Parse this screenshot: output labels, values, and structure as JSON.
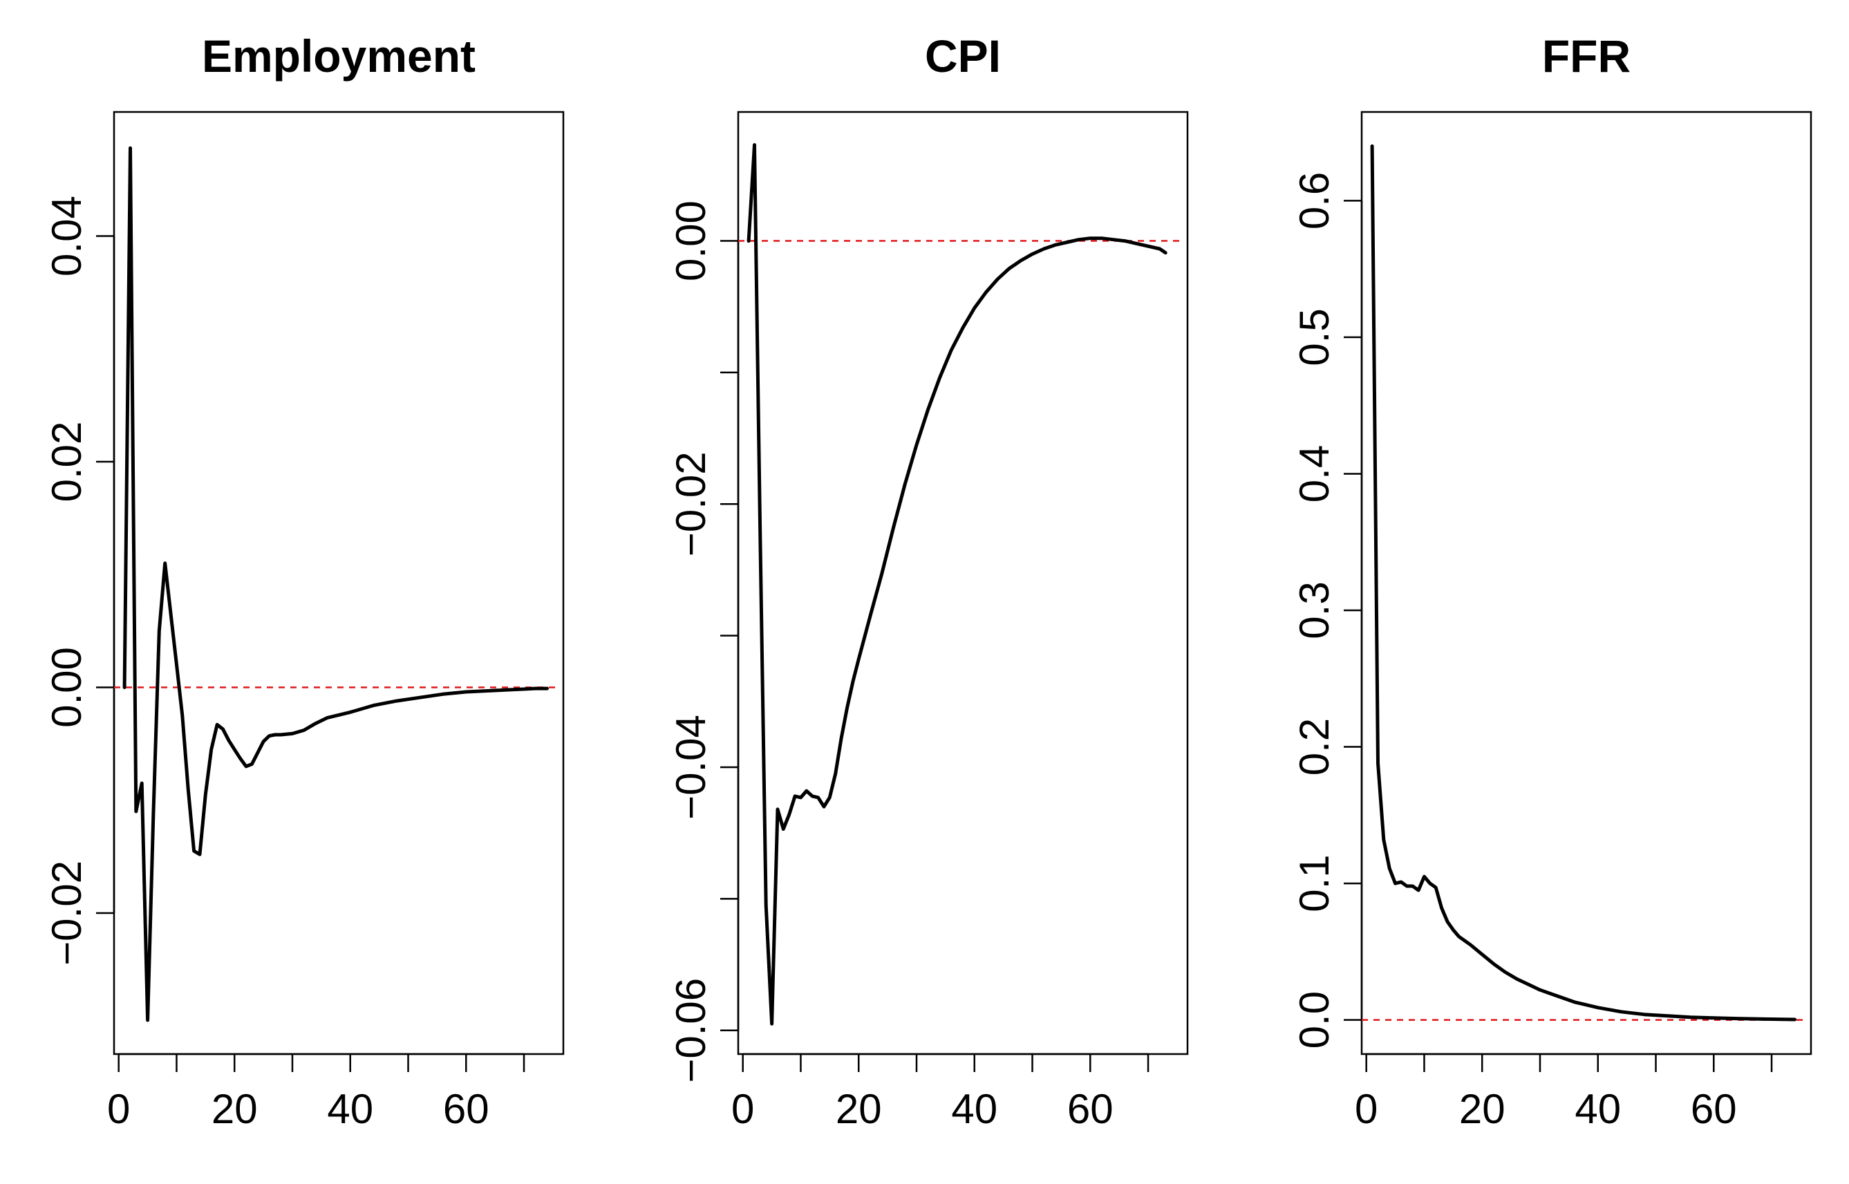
{
  "figure": {
    "background": "#ffffff",
    "line_color": "#000000",
    "reference_line_color": "#e0161b"
  },
  "chart_data": [
    {
      "type": "line",
      "title": "Employment",
      "xlabel": "",
      "ylabel": "",
      "xlim": [
        -0.8,
        76.8
      ],
      "ylim": [
        -0.0325,
        0.051
      ],
      "xticks": [
        0,
        10,
        20,
        30,
        40,
        50,
        60,
        70
      ],
      "xtick_labels": [
        "0",
        "",
        "20",
        "",
        "40",
        "",
        "60",
        ""
      ],
      "yticks": [
        -0.02,
        0.0,
        0.02,
        0.04
      ],
      "ytick_labels": [
        "−0.02",
        "0.00",
        "0.02",
        "0.04"
      ],
      "grid": false,
      "reference_line": {
        "y": 0,
        "style": "dashed",
        "color": "#e0161b"
      },
      "series": [
        {
          "x": [
            1,
            2,
            3,
            4,
            5,
            6,
            7,
            8,
            9,
            10,
            11,
            12,
            13,
            14,
            15,
            16,
            17,
            18,
            19,
            20,
            21,
            22,
            23,
            24,
            25,
            26,
            27,
            28,
            30,
            32,
            34,
            36,
            40,
            44,
            48,
            52,
            56,
            60,
            64,
            68,
            72,
            74
          ],
          "y": [
            0.0,
            0.0478,
            -0.011,
            -0.0085,
            -0.0295,
            -0.011,
            0.005,
            0.011,
            0.0065,
            0.002,
            -0.0025,
            -0.009,
            -0.0145,
            -0.0148,
            -0.0095,
            -0.0055,
            -0.0033,
            -0.0037,
            -0.0047,
            -0.0055,
            -0.0063,
            -0.007,
            -0.0068,
            -0.0058,
            -0.0048,
            -0.0043,
            -0.0042,
            -0.0042,
            -0.0041,
            -0.0038,
            -0.0032,
            -0.0027,
            -0.0022,
            -0.0016,
            -0.0012,
            -0.0009,
            -0.0006,
            -0.0004,
            -0.0003,
            -0.0002,
            -0.0001,
            -0.0001
          ]
        }
      ]
    },
    {
      "type": "line",
      "title": "CPI",
      "xlabel": "",
      "ylabel": "",
      "xlim": [
        -0.8,
        76.8
      ],
      "ylim": [
        -0.0618,
        0.0098
      ],
      "xticks": [
        0,
        10,
        20,
        30,
        40,
        50,
        60,
        70
      ],
      "xtick_labels": [
        "0",
        "",
        "20",
        "",
        "40",
        "",
        "60",
        ""
      ],
      "yticks": [
        -0.06,
        -0.05,
        -0.04,
        -0.03,
        -0.02,
        -0.01,
        0.0
      ],
      "ytick_labels": [
        "−0.06",
        "",
        "−0.04",
        "",
        "−0.02",
        "",
        "0.00"
      ],
      "grid": false,
      "reference_line": {
        "y": 0,
        "style": "dashed",
        "color": "#e0161b"
      },
      "series": [
        {
          "x": [
            1,
            2,
            3,
            4,
            5,
            6,
            7,
            8,
            9,
            10,
            11,
            12,
            13,
            14,
            15,
            16,
            17,
            18,
            19,
            20,
            22,
            24,
            26,
            28,
            30,
            32,
            34,
            36,
            38,
            40,
            42,
            44,
            46,
            48,
            50,
            52,
            54,
            56,
            58,
            60,
            62,
            64,
            66,
            68,
            70,
            72,
            73
          ],
          "y": [
            0.0,
            0.0073,
            -0.0225,
            -0.0505,
            -0.0595,
            -0.0432,
            -0.0447,
            -0.0436,
            -0.0422,
            -0.0423,
            -0.0418,
            -0.0422,
            -0.0423,
            -0.043,
            -0.0423,
            -0.0405,
            -0.0378,
            -0.0355,
            -0.0335,
            -0.0318,
            -0.0285,
            -0.0253,
            -0.0218,
            -0.0185,
            -0.0155,
            -0.0128,
            -0.0104,
            -0.0083,
            -0.0066,
            -0.0051,
            -0.0039,
            -0.0029,
            -0.0021,
            -0.0015,
            -0.001,
            -0.0006,
            -0.0003,
            -0.0001,
            0.0001,
            0.0002,
            0.0002,
            0.0001,
            0.0,
            -0.0002,
            -0.0004,
            -0.0006,
            -0.0009
          ]
        }
      ]
    },
    {
      "type": "line",
      "title": "FFR",
      "xlabel": "",
      "ylabel": "",
      "xlim": [
        -0.8,
        76.8
      ],
      "ylim": [
        -0.025,
        0.665
      ],
      "xticks": [
        0,
        10,
        20,
        30,
        40,
        50,
        60,
        70
      ],
      "xtick_labels": [
        "0",
        "",
        "20",
        "",
        "40",
        "",
        "60",
        ""
      ],
      "yticks": [
        0.0,
        0.1,
        0.2,
        0.3,
        0.4,
        0.5,
        0.6
      ],
      "ytick_labels": [
        "0.0",
        "0.1",
        "0.2",
        "0.3",
        "0.4",
        "0.5",
        "0.6"
      ],
      "grid": false,
      "reference_line": {
        "y": 0,
        "style": "dashed",
        "color": "#e0161b"
      },
      "series": [
        {
          "x": [
            1,
            2,
            3,
            4,
            5,
            6,
            7,
            8,
            9,
            10,
            11,
            12,
            13,
            14,
            15,
            16,
            18,
            20,
            22,
            24,
            26,
            28,
            30,
            32,
            34,
            36,
            40,
            44,
            48,
            52,
            56,
            60,
            64,
            68,
            72,
            74
          ],
          "y": [
            0.64,
            0.188,
            0.132,
            0.111,
            0.1,
            0.101,
            0.098,
            0.098,
            0.095,
            0.105,
            0.1,
            0.097,
            0.082,
            0.072,
            0.066,
            0.061,
            0.055,
            0.048,
            0.041,
            0.035,
            0.03,
            0.026,
            0.022,
            0.019,
            0.016,
            0.013,
            0.009,
            0.006,
            0.004,
            0.003,
            0.002,
            0.0015,
            0.001,
            0.0007,
            0.0004,
            0.0003
          ]
        }
      ]
    }
  ]
}
